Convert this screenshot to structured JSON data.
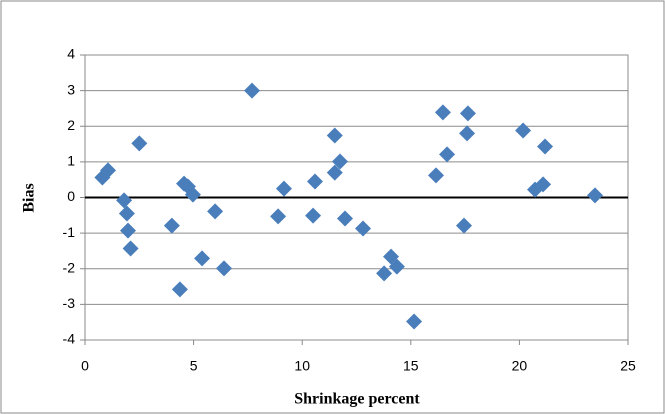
{
  "chart_data": {
    "type": "scatter",
    "x_label": "Shrinkage percent",
    "y_label": "Bias",
    "x": [
      0.8,
      1.06,
      1.8,
      1.93,
      1.98,
      2.1,
      2.5,
      4.0,
      4.37,
      4.56,
      4.74,
      4.97,
      5.39,
      5.99,
      6.4,
      7.69,
      8.89,
      9.16,
      10.5,
      10.59,
      11.5,
      11.5,
      11.74,
      11.97,
      12.8,
      13.77,
      14.09,
      14.36,
      15.15,
      16.16,
      16.48,
      16.67,
      17.45,
      17.59,
      17.63,
      20.17,
      20.72,
      21.09,
      21.18,
      23.48
    ],
    "values": [
      0.56,
      0.76,
      -0.08,
      -0.45,
      -0.93,
      -1.43,
      1.52,
      -0.79,
      -2.58,
      0.39,
      0.31,
      0.08,
      -1.71,
      -0.39,
      -1.99,
      3.0,
      -0.53,
      0.25,
      -0.51,
      0.45,
      1.74,
      0.7,
      1.01,
      -0.59,
      -0.87,
      -2.13,
      -1.66,
      -1.94,
      -3.48,
      0.62,
      2.39,
      1.21,
      -0.79,
      1.8,
      2.36,
      1.88,
      0.22,
      0.37,
      1.43,
      0.06
    ],
    "color": "#4a7ebb",
    "xlim": [
      0,
      25
    ],
    "xticks": [
      0,
      5,
      10,
      15,
      20,
      25
    ],
    "ylim": [
      -4,
      4
    ],
    "yticks": [
      -4,
      -3,
      -2,
      -1,
      0,
      1,
      2,
      3,
      4
    ],
    "grid": true
  }
}
